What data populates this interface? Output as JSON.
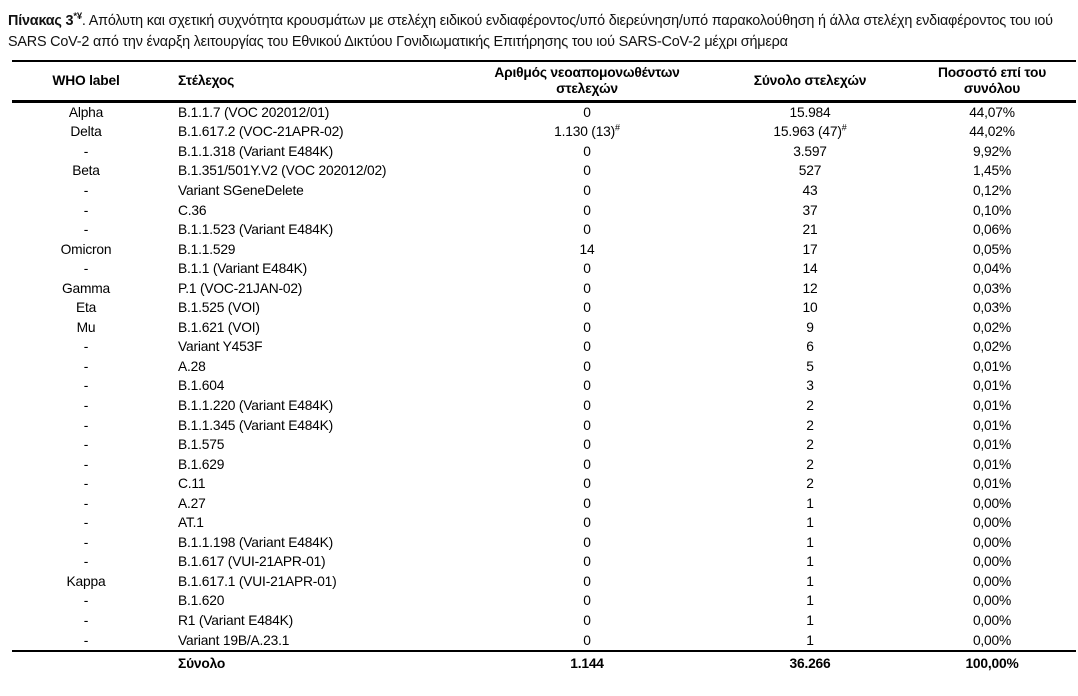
{
  "page": {
    "title": {
      "bold": "Πίνακας 3",
      "bold_sup": "*¥",
      "rest": ". Απόλυτη και σχετική συχνότητα κρουσμάτων με στελέχη ειδικού ενδιαφέροντος/υπό διερεύνηση/υπό παρακολούθηση ή άλλα στελέχη ενδιαφέροντος του ιού SARS CoV-2 από την έναρξη λειτουργίας του Εθνικού Δικτύου Γονιδιωματικής Επιτήρησης του ιού SARS-CoV-2 μέχρι σήμερα"
    }
  },
  "colors": {
    "text": "#000000",
    "background": "#ffffff",
    "rule": "#000000"
  },
  "table": {
    "columns": [
      "WHO label",
      "Στέλεχος",
      "Αριθμός νεοαπομονωθέντων στελεχών",
      "Σύνολο στελεχών",
      "Ποσοστό επί του συνόλου"
    ],
    "rows": [
      [
        "Alpha",
        "B.1.1.7 (VOC 202012/01)",
        "0",
        "15.984",
        "44,07%"
      ],
      [
        "Delta",
        "B.1.617.2 (VOC-21APR-02)",
        {
          "text": "1.130 (13)",
          "sup": "#"
        },
        {
          "text": "15.963 (47)",
          "sup": "#"
        },
        "44,02%"
      ],
      [
        "-",
        "B.1.1.318 (Variant E484K)",
        "0",
        "3.597",
        "9,92%"
      ],
      [
        "Beta",
        "B.1.351/501Y.V2 (VOC 202012/02)",
        "0",
        "527",
        "1,45%"
      ],
      [
        "-",
        "Variant SGeneDelete",
        "0",
        "43",
        "0,12%"
      ],
      [
        "-",
        "C.36",
        "0",
        "37",
        "0,10%"
      ],
      [
        "-",
        "B.1.1.523 (Variant E484K)",
        "0",
        "21",
        "0,06%"
      ],
      [
        "Omicron",
        "B.1.1.529",
        "14",
        "17",
        "0,05%"
      ],
      [
        "-",
        "B.1.1 (Variant E484K)",
        "0",
        "14",
        "0,04%"
      ],
      [
        "Gamma",
        "P.1 (VOC-21JAN-02)",
        "0",
        "12",
        "0,03%"
      ],
      [
        "Eta",
        "B.1.525 (VOI)",
        "0",
        "10",
        "0,03%"
      ],
      [
        "Mu",
        "B.1.621 (VOI)",
        "0",
        "9",
        "0,02%"
      ],
      [
        "-",
        "Variant Y453F",
        "0",
        "6",
        "0,02%"
      ],
      [
        "-",
        "A.28",
        "0",
        "5",
        "0,01%"
      ],
      [
        "-",
        "B.1.604",
        "0",
        "3",
        "0,01%"
      ],
      [
        "-",
        "B.1.1.220 (Variant E484K)",
        "0",
        "2",
        "0,01%"
      ],
      [
        "-",
        "B.1.1.345 (Variant E484K)",
        "0",
        "2",
        "0,01%"
      ],
      [
        "-",
        "B.1.575",
        "0",
        "2",
        "0,01%"
      ],
      [
        "-",
        "B.1.629",
        "0",
        "2",
        "0,01%"
      ],
      [
        "-",
        "C.11",
        "0",
        "2",
        "0,01%"
      ],
      [
        "-",
        "A.27",
        "0",
        "1",
        "0,00%"
      ],
      [
        "-",
        "AT.1",
        "0",
        "1",
        "0,00%"
      ],
      [
        "-",
        "B.1.1.198 (Variant E484K)",
        "0",
        "1",
        "0,00%"
      ],
      [
        "-",
        "B.1.617 (VUI-21APR-01)",
        "0",
        "1",
        "0,00%"
      ],
      [
        "Kappa",
        "B.1.617.1 (VUI-21APR-01)",
        "0",
        "1",
        "0,00%"
      ],
      [
        "-",
        "B.1.620",
        "0",
        "1",
        "0,00%"
      ],
      [
        "-",
        "R1 (Variant E484K)",
        "0",
        "1",
        "0,00%"
      ],
      [
        "-",
        "Variant 19B/A.23.1",
        "0",
        "1",
        "0,00%"
      ]
    ],
    "total": [
      "",
      "Σύνολο",
      "1.144",
      "36.266",
      "100,00%"
    ]
  }
}
